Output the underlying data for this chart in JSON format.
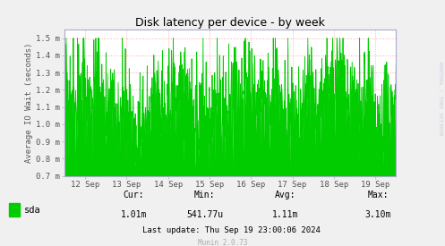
{
  "title": "Disk latency per device - by week",
  "ylabel": "Average IO Wait (seconds)",
  "bg_color": "#f0f0f0",
  "plot_bg_color": "#ffffff",
  "grid_color": "#ffaaaa",
  "line_color": "#00cc00",
  "fill_color": "#00cc00",
  "ylim_min": 0.0007,
  "ylim_max": 0.00155,
  "yticks": [
    0.0007,
    0.0008,
    0.0009,
    0.001,
    0.0011,
    0.0012,
    0.0013,
    0.0014,
    0.0015
  ],
  "ytick_labels": [
    "0.7 m",
    "0.8 m",
    "0.9 m",
    "1.0 m",
    "1.1 m",
    "1.2 m",
    "1.3 m",
    "1.4 m",
    "1.5 m"
  ],
  "xtick_labels": [
    "12 Sep",
    "13 Sep",
    "14 Sep",
    "15 Sep",
    "16 Sep",
    "17 Sep",
    "18 Sep",
    "19 Sep"
  ],
  "legend_label": "sda",
  "legend_color": "#00cc00",
  "last_update": "Last update: Thu Sep 19 23:00:06 2024",
  "watermark": "Munin 2.0.73",
  "rrdtool_label": "RRDTOOL / TOBI OETIKER",
  "spine_color": "#aaaacc",
  "text_color": "#555555",
  "num_points": 1200,
  "seed": 42
}
